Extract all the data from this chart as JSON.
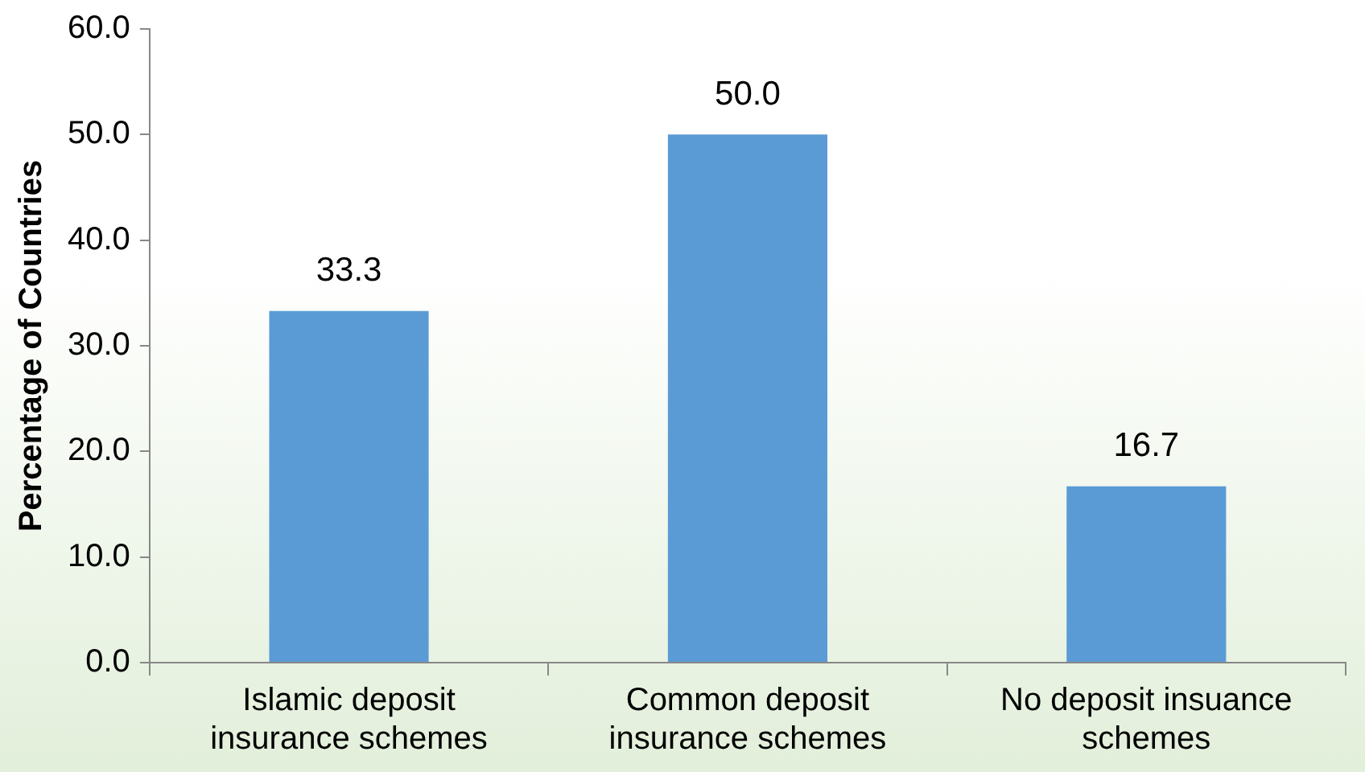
{
  "chart_data": {
    "type": "bar",
    "ylabel": "Percentage of Countries",
    "categories": [
      "Islamic deposit insurance schemes",
      "Common deposit insurance schemes",
      "No deposit insuance schemes"
    ],
    "values": [
      33.3,
      50.0,
      16.7
    ],
    "color": "#5b9bd5",
    "value_labels": [
      "33.3",
      "50.0",
      "16.7"
    ],
    "ylim": [
      0,
      60
    ],
    "yticks": [
      {
        "value": 0,
        "label": "0.0"
      },
      {
        "value": 10,
        "label": "10.0"
      },
      {
        "value": 20,
        "label": "20.0"
      },
      {
        "value": 30,
        "label": "30.0"
      },
      {
        "value": 40,
        "label": "40.0"
      },
      {
        "value": 50,
        "label": "50.0"
      },
      {
        "value": 60,
        "label": "60.0"
      }
    ]
  }
}
